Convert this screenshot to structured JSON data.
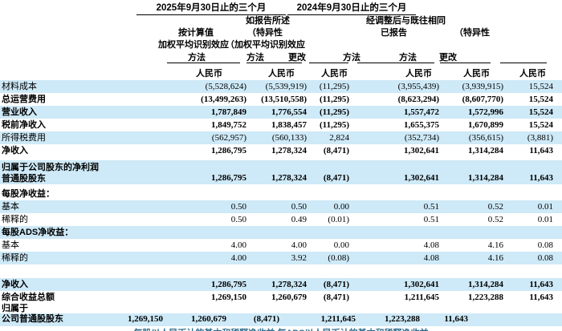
{
  "header": {
    "titles": [
      "2025年9月30日止的三个月",
      "2024年9月30日止的三个月"
    ],
    "groups": [
      "如报告所述",
      "经调整后与既往相同"
    ],
    "sub1": [
      "按计算值",
      "（特异性",
      "已报告",
      "（特异性"
    ],
    "sub2": [
      "加权平均识别效应",
      "（加权平均识别效应"
    ],
    "methods": [
      "方法",
      "方法",
      "更改",
      "方法",
      "方法",
      "更改"
    ],
    "currency": [
      "人民币",
      "人民币",
      "人民币",
      "人民币",
      "人民币",
      "人民币"
    ]
  },
  "table": {
    "rows": [
      {
        "label": "材料成本",
        "values": [
          "(5,528,624)",
          "(5,539,919)",
          "(11,295)",
          "(3,955,439)",
          "(3,939,915)",
          "15,524"
        ],
        "bg": "blue",
        "bold": false
      },
      {
        "label": "总运营费用",
        "values": [
          "(13,499,263)",
          "(13,510,558)",
          "(11,295)",
          "(8,623,294)",
          "(8,607,770)",
          "15,524"
        ],
        "bg": "white",
        "bold": true
      },
      {
        "label": "营业收入",
        "values": [
          "1,787,849",
          "1,776,554",
          "(11,295)",
          "1,557,472",
          "1,572,996",
          "15,524"
        ],
        "bg": "blue",
        "bold": true
      },
      {
        "label": "税前净收入",
        "values": [
          "1,849,752",
          "1,838,457",
          "(11,295)",
          "1,655,375",
          "1,670,899",
          "15,524"
        ],
        "bg": "white",
        "bold": true
      },
      {
        "label": "所得税费用",
        "values": [
          "(562,957)",
          "(560,133)",
          "2,824",
          "(352,734)",
          "(356,615)",
          "(3,881)"
        ],
        "bg": "blue",
        "bold": false
      },
      {
        "label": "净收入",
        "values": [
          "1,286,795",
          "1,278,324",
          "(8,471)",
          "1,302,641",
          "1,314,284",
          "11,643"
        ],
        "bg": "white",
        "bold": true
      },
      {
        "label": "归属于公司股东的净利润",
        "label2": "普通股股东",
        "values": [
          "1,286,795",
          "1,278,324",
          "(8,471)",
          "1,302,641",
          "1,314,284",
          "11,643"
        ],
        "bg": "blue",
        "bold": true,
        "type": "two_line"
      },
      {
        "label": "每股净收益：",
        "values": [
          "",
          "",
          "",
          "",
          "",
          ""
        ],
        "bg": "white",
        "bold": true,
        "type": "eps_header"
      },
      {
        "label": "基本",
        "values": [
          "0.50",
          "0.50",
          "0.00",
          "0.51",
          "0.52",
          "0.01"
        ],
        "bg": "blue",
        "bold": false
      },
      {
        "label": "稀释的",
        "values": [
          "0.50",
          "0.49",
          "(0.01)",
          "0.51",
          "0.52",
          "0.01"
        ],
        "bg": "white",
        "bold": false
      },
      {
        "label": "每股ADS净收益：",
        "values": [
          "",
          "",
          "",
          "",
          "",
          ""
        ],
        "bg": "blue",
        "bold": true
      },
      {
        "label": "基本",
        "values": [
          "4.00",
          "4.00",
          "0.00",
          "4.08",
          "4.16",
          "0.08"
        ],
        "bg": "white",
        "bold": false
      },
      {
        "label": "稀释的",
        "values": [
          "4.00",
          "3.92",
          "(0.08)",
          "4.08",
          "4.16",
          "0.08"
        ],
        "bg": "blue",
        "bold": false
      },
      {
        "label": "",
        "values": [
          "",
          "",
          "",
          "",
          "",
          ""
        ],
        "bg": "white",
        "bold": false,
        "type": "spacer"
      },
      {
        "label": "净收入",
        "values": [
          "1,286,795",
          "1,278,324",
          "(8,471)",
          "1,302,641",
          "1,314,284",
          "11,643"
        ],
        "bg": "blue",
        "bold": true
      },
      {
        "label": "综合收益总额",
        "values": [
          "1,269,150",
          "1,260,679",
          "(8,471)",
          "1,211,645",
          "1,223,288",
          "11,643"
        ],
        "bg": "white",
        "bold": true
      },
      {
        "label": "归属于",
        "values": [
          "",
          "",
          "",
          "",
          "",
          ""
        ],
        "bg": "white",
        "bold": true,
        "type": "sub_label"
      },
      {
        "label": "公司普通股股东",
        "values": [
          "1,269,150",
          "1,260,679",
          "(8,471)",
          "1,211,645",
          "1,223,288",
          "11,643"
        ],
        "bg": "blue",
        "bold": true,
        "type": "shifted"
      }
    ]
  },
  "footnote_clipped": "每股以人民币计的基本和稀释净收益 每ADS以人民币计的基本和稀释净收益"
}
